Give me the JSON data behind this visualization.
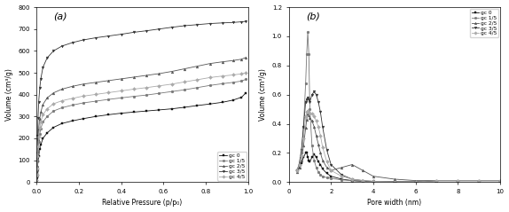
{
  "panel_a": {
    "title": "(a)",
    "xlabel": "Relative Pressure (p/p₀)",
    "ylabel": "Volume (cm³/g)",
    "ylim": [
      0,
      800
    ],
    "xlim": [
      0,
      1.0
    ],
    "yticks": [
      0,
      100,
      200,
      300,
      400,
      500,
      600,
      700,
      800
    ],
    "xticks": [
      0.0,
      0.2,
      0.4,
      0.6,
      0.8,
      1.0
    ],
    "series": {
      "gc 0": {
        "color": "#111111",
        "marker": "s",
        "marker_size": 2.0,
        "lw": 0.6,
        "x": [
          0.001,
          0.002,
          0.003,
          0.005,
          0.007,
          0.01,
          0.015,
          0.02,
          0.03,
          0.05,
          0.08,
          0.12,
          0.17,
          0.22,
          0.28,
          0.34,
          0.4,
          0.46,
          0.52,
          0.58,
          0.64,
          0.7,
          0.76,
          0.82,
          0.88,
          0.93,
          0.97,
          0.99
        ],
        "y": [
          5,
          20,
          40,
          70,
          95,
          120,
          150,
          170,
          200,
          225,
          250,
          268,
          280,
          290,
          300,
          308,
          315,
          320,
          325,
          330,
          335,
          342,
          350,
          357,
          365,
          375,
          388,
          408
        ]
      },
      "gc 1/5": {
        "color": "#777777",
        "marker": "o",
        "marker_size": 2.0,
        "lw": 0.6,
        "x": [
          0.001,
          0.002,
          0.003,
          0.005,
          0.007,
          0.01,
          0.015,
          0.02,
          0.03,
          0.05,
          0.08,
          0.12,
          0.17,
          0.22,
          0.28,
          0.34,
          0.4,
          0.46,
          0.52,
          0.58,
          0.64,
          0.7,
          0.76,
          0.82,
          0.88,
          0.93,
          0.97,
          0.99
        ],
        "y": [
          8,
          28,
          55,
          100,
          145,
          185,
          220,
          245,
          275,
          300,
          325,
          340,
          352,
          362,
          370,
          378,
          385,
          392,
          398,
          406,
          414,
          422,
          432,
          442,
          450,
          456,
          462,
          470
        ]
      },
      "gc 2/5": {
        "color": "#555555",
        "marker": "^",
        "marker_size": 2.0,
        "lw": 0.6,
        "x": [
          0.001,
          0.002,
          0.003,
          0.005,
          0.007,
          0.01,
          0.015,
          0.02,
          0.03,
          0.05,
          0.08,
          0.12,
          0.17,
          0.22,
          0.28,
          0.34,
          0.4,
          0.46,
          0.52,
          0.58,
          0.64,
          0.7,
          0.76,
          0.82,
          0.88,
          0.93,
          0.97,
          0.99
        ],
        "y": [
          10,
          38,
          75,
          140,
          195,
          245,
          290,
          320,
          355,
          385,
          408,
          425,
          438,
          448,
          456,
          464,
          472,
          480,
          488,
          496,
          506,
          518,
          530,
          542,
          550,
          556,
          562,
          570
        ]
      },
      "gc 3/5": {
        "color": "#333333",
        "marker": "v",
        "marker_size": 2.0,
        "lw": 0.6,
        "x": [
          0.001,
          0.002,
          0.003,
          0.005,
          0.007,
          0.01,
          0.015,
          0.02,
          0.03,
          0.05,
          0.08,
          0.12,
          0.17,
          0.22,
          0.28,
          0.34,
          0.4,
          0.46,
          0.52,
          0.58,
          0.64,
          0.7,
          0.76,
          0.82,
          0.88,
          0.93,
          0.97,
          0.99
        ],
        "y": [
          15,
          55,
          110,
          210,
          295,
          368,
          430,
          472,
          525,
          568,
          600,
          622,
          638,
          650,
          660,
          668,
          676,
          685,
          692,
          700,
          708,
          715,
          720,
          725,
          728,
          730,
          733,
          735
        ]
      },
      "gc 4/5": {
        "color": "#aaaaaa",
        "marker": "D",
        "marker_size": 2.0,
        "lw": 0.6,
        "x": [
          0.001,
          0.002,
          0.003,
          0.005,
          0.007,
          0.01,
          0.015,
          0.02,
          0.03,
          0.05,
          0.08,
          0.12,
          0.17,
          0.22,
          0.28,
          0.34,
          0.4,
          0.46,
          0.52,
          0.58,
          0.64,
          0.7,
          0.76,
          0.82,
          0.88,
          0.93,
          0.97,
          0.99
        ],
        "y": [
          9,
          32,
          62,
          118,
          165,
          208,
          248,
          275,
          308,
          335,
          358,
          372,
          383,
          393,
          401,
          409,
          417,
          425,
          432,
          440,
          448,
          458,
          468,
          478,
          485,
          490,
          495,
          500
        ]
      }
    },
    "legend_order": [
      "gc 0",
      "gc 1/5",
      "gc 2/5",
      "gc 3/5",
      "gc 4/5"
    ]
  },
  "panel_b": {
    "title": "(b)",
    "xlabel": "Pore width (nm)",
    "ylabel": "Volume (cm³/g)",
    "ylim": [
      0,
      1.2
    ],
    "xlim": [
      0,
      10
    ],
    "yticks": [
      0.0,
      0.2,
      0.4,
      0.6,
      0.8,
      1.0,
      1.2
    ],
    "xticks": [
      0,
      2,
      4,
      6,
      8,
      10
    ],
    "series": {
      "gc 0": {
        "color": "#111111",
        "marker": "s",
        "marker_size": 2.0,
        "lw": 0.6,
        "x": [
          0.4,
          0.5,
          0.6,
          0.7,
          0.8,
          0.85,
          0.9,
          0.95,
          1.0,
          1.1,
          1.2,
          1.3,
          1.4,
          1.5,
          1.6,
          1.8,
          2.0,
          2.5,
          3.0,
          3.5,
          4.0,
          5.0,
          6.0,
          7.0,
          8.0,
          9.0,
          10.0
        ],
        "y": [
          0.08,
          0.1,
          0.13,
          0.17,
          0.2,
          0.2,
          0.17,
          0.15,
          0.14,
          0.17,
          0.19,
          0.17,
          0.14,
          0.12,
          0.09,
          0.06,
          0.04,
          0.02,
          0.01,
          0.005,
          0.002,
          0.001,
          0.0,
          0.0,
          0.0,
          0.0,
          0.0
        ]
      },
      "gc 1/5": {
        "color": "#777777",
        "marker": "o",
        "marker_size": 2.0,
        "lw": 0.6,
        "x": [
          0.4,
          0.5,
          0.6,
          0.7,
          0.8,
          0.85,
          0.9,
          0.95,
          1.0,
          1.1,
          1.2,
          1.3,
          1.4,
          1.5,
          1.6,
          1.8,
          2.0,
          2.5,
          3.0,
          3.5,
          4.0,
          5.0,
          6.0,
          7.0,
          8.0,
          9.0,
          10.0
        ],
        "y": [
          0.08,
          0.12,
          0.2,
          0.38,
          0.68,
          0.88,
          1.03,
          0.88,
          0.5,
          0.25,
          0.15,
          0.1,
          0.07,
          0.05,
          0.04,
          0.03,
          0.025,
          0.015,
          0.01,
          0.005,
          0.003,
          0.002,
          0.001,
          0.01,
          0.01,
          0.01,
          0.01
        ]
      },
      "gc 2/5": {
        "color": "#555555",
        "marker": "^",
        "marker_size": 2.0,
        "lw": 0.6,
        "x": [
          0.4,
          0.5,
          0.6,
          0.7,
          0.8,
          0.85,
          0.9,
          0.95,
          1.0,
          1.1,
          1.2,
          1.3,
          1.4,
          1.5,
          1.6,
          1.8,
          2.0,
          2.5,
          3.0,
          3.5,
          4.0,
          5.0,
          6.0,
          7.0,
          8.0,
          9.0,
          10.0
        ],
        "y": [
          0.07,
          0.1,
          0.15,
          0.25,
          0.37,
          0.43,
          0.47,
          0.46,
          0.44,
          0.42,
          0.38,
          0.32,
          0.26,
          0.2,
          0.15,
          0.1,
          0.08,
          0.1,
          0.12,
          0.08,
          0.04,
          0.02,
          0.01,
          0.01,
          0.01,
          0.01,
          0.01
        ]
      },
      "gc 3/5": {
        "color": "#333333",
        "marker": "v",
        "marker_size": 2.0,
        "lw": 0.6,
        "x": [
          0.4,
          0.5,
          0.6,
          0.7,
          0.8,
          0.85,
          0.9,
          0.95,
          1.0,
          1.1,
          1.2,
          1.3,
          1.4,
          1.5,
          1.6,
          1.8,
          2.0,
          2.5,
          3.0,
          3.5,
          4.0,
          5.0,
          6.0,
          7.0,
          8.0,
          9.0,
          10.0
        ],
        "y": [
          0.08,
          0.13,
          0.22,
          0.38,
          0.55,
          0.57,
          0.58,
          0.57,
          0.55,
          0.6,
          0.62,
          0.6,
          0.55,
          0.48,
          0.38,
          0.22,
          0.12,
          0.05,
          0.02,
          0.01,
          0.005,
          0.002,
          0.001,
          0.01,
          0.01,
          0.01,
          0.01
        ]
      },
      "gc 4/5": {
        "color": "#aaaaaa",
        "marker": "D",
        "marker_size": 2.0,
        "lw": 0.6,
        "x": [
          0.4,
          0.5,
          0.6,
          0.7,
          0.8,
          0.85,
          0.9,
          0.95,
          1.0,
          1.1,
          1.2,
          1.3,
          1.4,
          1.5,
          1.6,
          1.8,
          2.0,
          2.5,
          3.0,
          3.5,
          4.0,
          5.0,
          6.0,
          7.0,
          8.0,
          9.0,
          10.0
        ],
        "y": [
          0.08,
          0.12,
          0.18,
          0.3,
          0.45,
          0.48,
          0.49,
          0.48,
          0.47,
          0.47,
          0.45,
          0.42,
          0.38,
          0.32,
          0.24,
          0.14,
          0.08,
          0.04,
          0.02,
          0.01,
          0.005,
          0.002,
          0.001,
          0.01,
          0.01,
          0.01,
          0.01
        ]
      }
    },
    "legend_order": [
      "gc 0",
      "gc 1/5",
      "gc 2/5",
      "gc 3/5",
      "gc 4/5"
    ]
  }
}
